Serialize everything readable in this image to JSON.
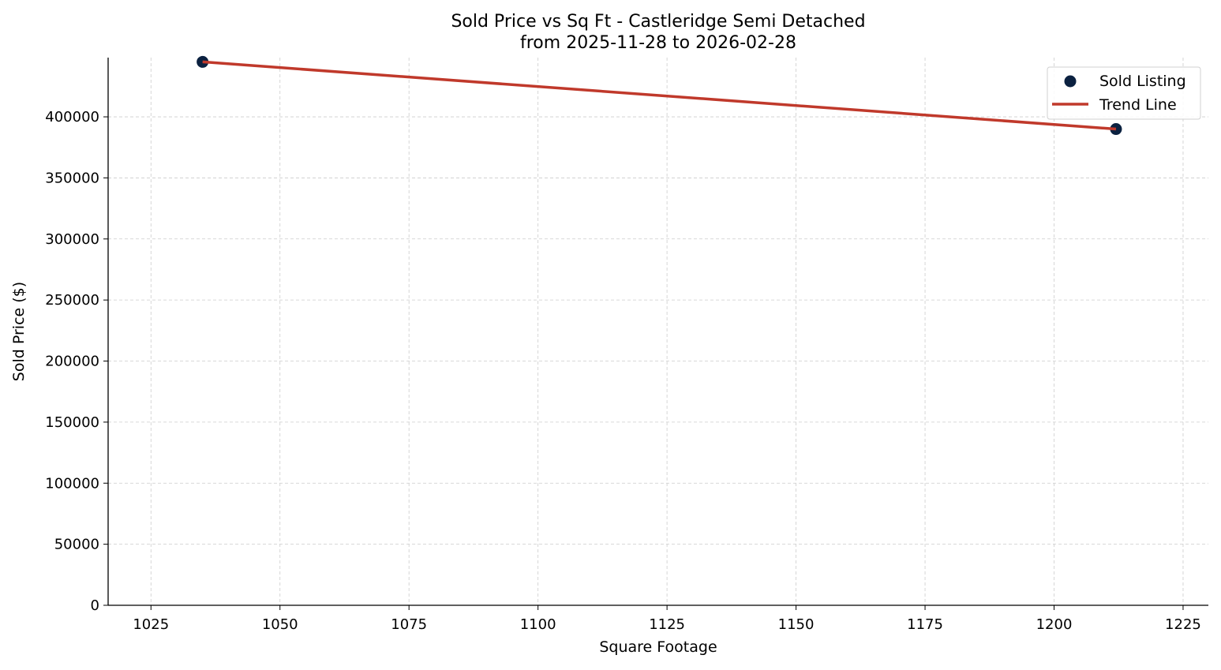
{
  "chart_data": {
    "type": "scatter",
    "title": "Sold Price vs Sq Ft - Castleridge Semi Detached",
    "subtitle": "from 2025-11-28 to 2026-02-28",
    "xlabel": "Square Footage",
    "ylabel": "Sold Price ($)",
    "xlim": [
      1016.7,
      1229.9
    ],
    "ylim": [
      0,
      448500
    ],
    "xticks": [
      1025,
      1050,
      1075,
      1100,
      1125,
      1150,
      1175,
      1200,
      1225
    ],
    "yticks": [
      0,
      50000,
      100000,
      150000,
      200000,
      250000,
      300000,
      350000,
      400000
    ],
    "grid": true,
    "legend_position": "top-right",
    "series": [
      {
        "name": "Sold Listing",
        "kind": "scatter",
        "color": "#0b2140",
        "points": [
          {
            "x": 1035,
            "y": 445000
          },
          {
            "x": 1212,
            "y": 390000
          }
        ]
      },
      {
        "name": "Trend Line",
        "kind": "line",
        "color": "#c0392b",
        "points": [
          {
            "x": 1035,
            "y": 445000
          },
          {
            "x": 1212,
            "y": 390000
          }
        ]
      }
    ]
  }
}
